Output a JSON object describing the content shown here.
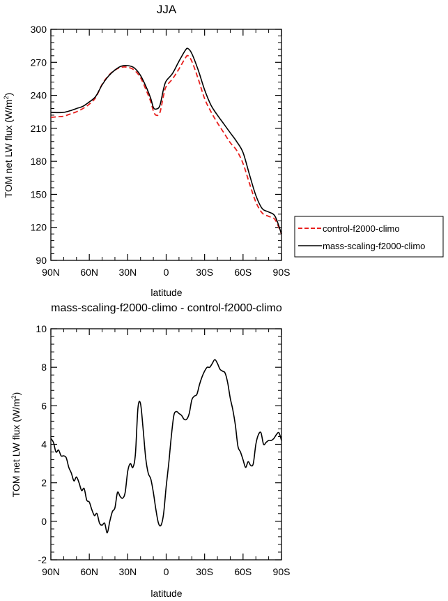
{
  "chart_data": [
    {
      "type": "line",
      "title": "JJA",
      "xlabel": "latitude",
      "ylabel": "TOM net LW flux (W/m",
      "ylabel_sup": "2",
      "ylabel_close": ")",
      "xlim": [
        90,
        -90
      ],
      "ylim": [
        90,
        300
      ],
      "x_ticks": [
        90,
        60,
        30,
        0,
        -30,
        -60,
        -90
      ],
      "x_tick_labels": [
        "90N",
        "60N",
        "30N",
        "0",
        "30S",
        "60S",
        "90S"
      ],
      "y_ticks": [
        90,
        120,
        150,
        180,
        210,
        240,
        270,
        300
      ],
      "y_tick_labels": [
        "90",
        "120",
        "150",
        "180",
        "210",
        "240",
        "270",
        "300"
      ],
      "grid": false,
      "legend_position": "right, outside plot",
      "series": [
        {
          "name": "control-f2000-climo",
          "color": "#e8201e",
          "dash": "dashed",
          "x": [
            90,
            85,
            80,
            75,
            70,
            65,
            60,
            55,
            50,
            45,
            40,
            35,
            30,
            25,
            20,
            15,
            12,
            10,
            8,
            5,
            2,
            0,
            -5,
            -10,
            -15,
            -17,
            -20,
            -25,
            -30,
            -35,
            -40,
            -45,
            -50,
            -55,
            -60,
            -65,
            -70,
            -75,
            -80,
            -85,
            -90
          ],
          "values": [
            220,
            220.5,
            221,
            223,
            225,
            228,
            232,
            238,
            250,
            258,
            263,
            265.5,
            265.5,
            263,
            256,
            243,
            234,
            226,
            222,
            224,
            240,
            248,
            255,
            264,
            274,
            276,
            271,
            255,
            237,
            225,
            215,
            206,
            197,
            190,
            178,
            160,
            143,
            133,
            130,
            127,
            114
          ]
        },
        {
          "name": "mass-scaling-f2000-climo",
          "color": "#000000",
          "dash": "solid",
          "x": [
            90,
            85,
            80,
            75,
            70,
            65,
            60,
            55,
            50,
            45,
            40,
            35,
            30,
            25,
            20,
            15,
            12,
            10,
            8,
            5,
            2,
            0,
            -5,
            -10,
            -15,
            -17,
            -20,
            -25,
            -30,
            -35,
            -40,
            -45,
            -50,
            -55,
            -60,
            -65,
            -70,
            -75,
            -80,
            -85,
            -90
          ],
          "values": [
            224.5,
            224.3,
            224.5,
            226,
            228,
            230,
            234,
            239,
            249.5,
            257.5,
            263,
            266.5,
            267,
            265,
            258,
            246,
            237,
            229,
            227.5,
            230.5,
            246,
            253,
            260,
            271,
            281,
            282.5,
            278,
            263,
            245,
            231,
            222,
            214,
            206,
            198,
            188,
            168,
            149,
            137,
            134,
            130,
            114
          ]
        }
      ]
    },
    {
      "type": "line",
      "title": "mass-scaling-f2000-climo - control-f2000-climo",
      "xlabel": "latitude",
      "ylabel": "TOM net LW flux (W/m",
      "ylabel_sup": "2",
      "ylabel_close": ")",
      "xlim": [
        90,
        -90
      ],
      "ylim": [
        -2,
        10
      ],
      "x_ticks": [
        90,
        60,
        30,
        0,
        -30,
        -60,
        -90
      ],
      "x_tick_labels": [
        "90N",
        "60N",
        "30N",
        "0",
        "30S",
        "60S",
        "90S"
      ],
      "y_ticks": [
        -2,
        0,
        2,
        4,
        6,
        8,
        10
      ],
      "y_tick_labels": [
        "-2",
        "0",
        "2",
        "4",
        "6",
        "8",
        "10"
      ],
      "grid": false,
      "series": [
        {
          "color": "#000000",
          "dash": "solid",
          "x": [
            90,
            88,
            86,
            84,
            82,
            80,
            78,
            76,
            74,
            72,
            70,
            68,
            66,
            64,
            62,
            60,
            58,
            56,
            54,
            52,
            50,
            48,
            46,
            44,
            42,
            40,
            38,
            36,
            34,
            32,
            30,
            28,
            26,
            24,
            22,
            20,
            18,
            16,
            14,
            12,
            10,
            8,
            6,
            4,
            2,
            0,
            -2,
            -4,
            -6,
            -8,
            -10,
            -12,
            -14,
            -16,
            -18,
            -20,
            -22,
            -24,
            -26,
            -28,
            -30,
            -32,
            -34,
            -36,
            -38,
            -40,
            -42,
            -44,
            -46,
            -48,
            -50,
            -52,
            -54,
            -56,
            -58,
            -60,
            -62,
            -64,
            -66,
            -68,
            -70,
            -72,
            -74,
            -76,
            -78,
            -80,
            -82,
            -84,
            -86,
            -88,
            -90
          ],
          "values": [
            4.3,
            4.1,
            3.6,
            3.7,
            3.4,
            3.4,
            3.3,
            2.8,
            2.5,
            2.1,
            2.3,
            2.0,
            1.6,
            1.7,
            1.1,
            1.0,
            0.6,
            0.3,
            0.4,
            -0.1,
            -0.2,
            -0.1,
            -0.6,
            0.0,
            0.5,
            0.7,
            1.5,
            1.3,
            1.2,
            1.5,
            2.6,
            3.0,
            2.8,
            3.5,
            5.9,
            6.1,
            4.8,
            3.3,
            2.5,
            2.2,
            1.5,
            0.6,
            -0.1,
            -0.2,
            0.4,
            1.8,
            3.0,
            4.4,
            5.5,
            5.7,
            5.6,
            5.5,
            5.3,
            5.3,
            5.6,
            6.3,
            6.5,
            6.6,
            7.1,
            7.5,
            7.8,
            8.0,
            8.0,
            8.2,
            8.4,
            8.2,
            7.9,
            7.8,
            7.7,
            7.2,
            6.4,
            5.8,
            5.0,
            3.9,
            3.6,
            3.2,
            2.8,
            3.1,
            2.9,
            3.0,
            4.0,
            4.5,
            4.6,
            4.0,
            4.1,
            4.2,
            4.2,
            4.3,
            4.5,
            4.6,
            4.2
          ]
        }
      ]
    }
  ]
}
